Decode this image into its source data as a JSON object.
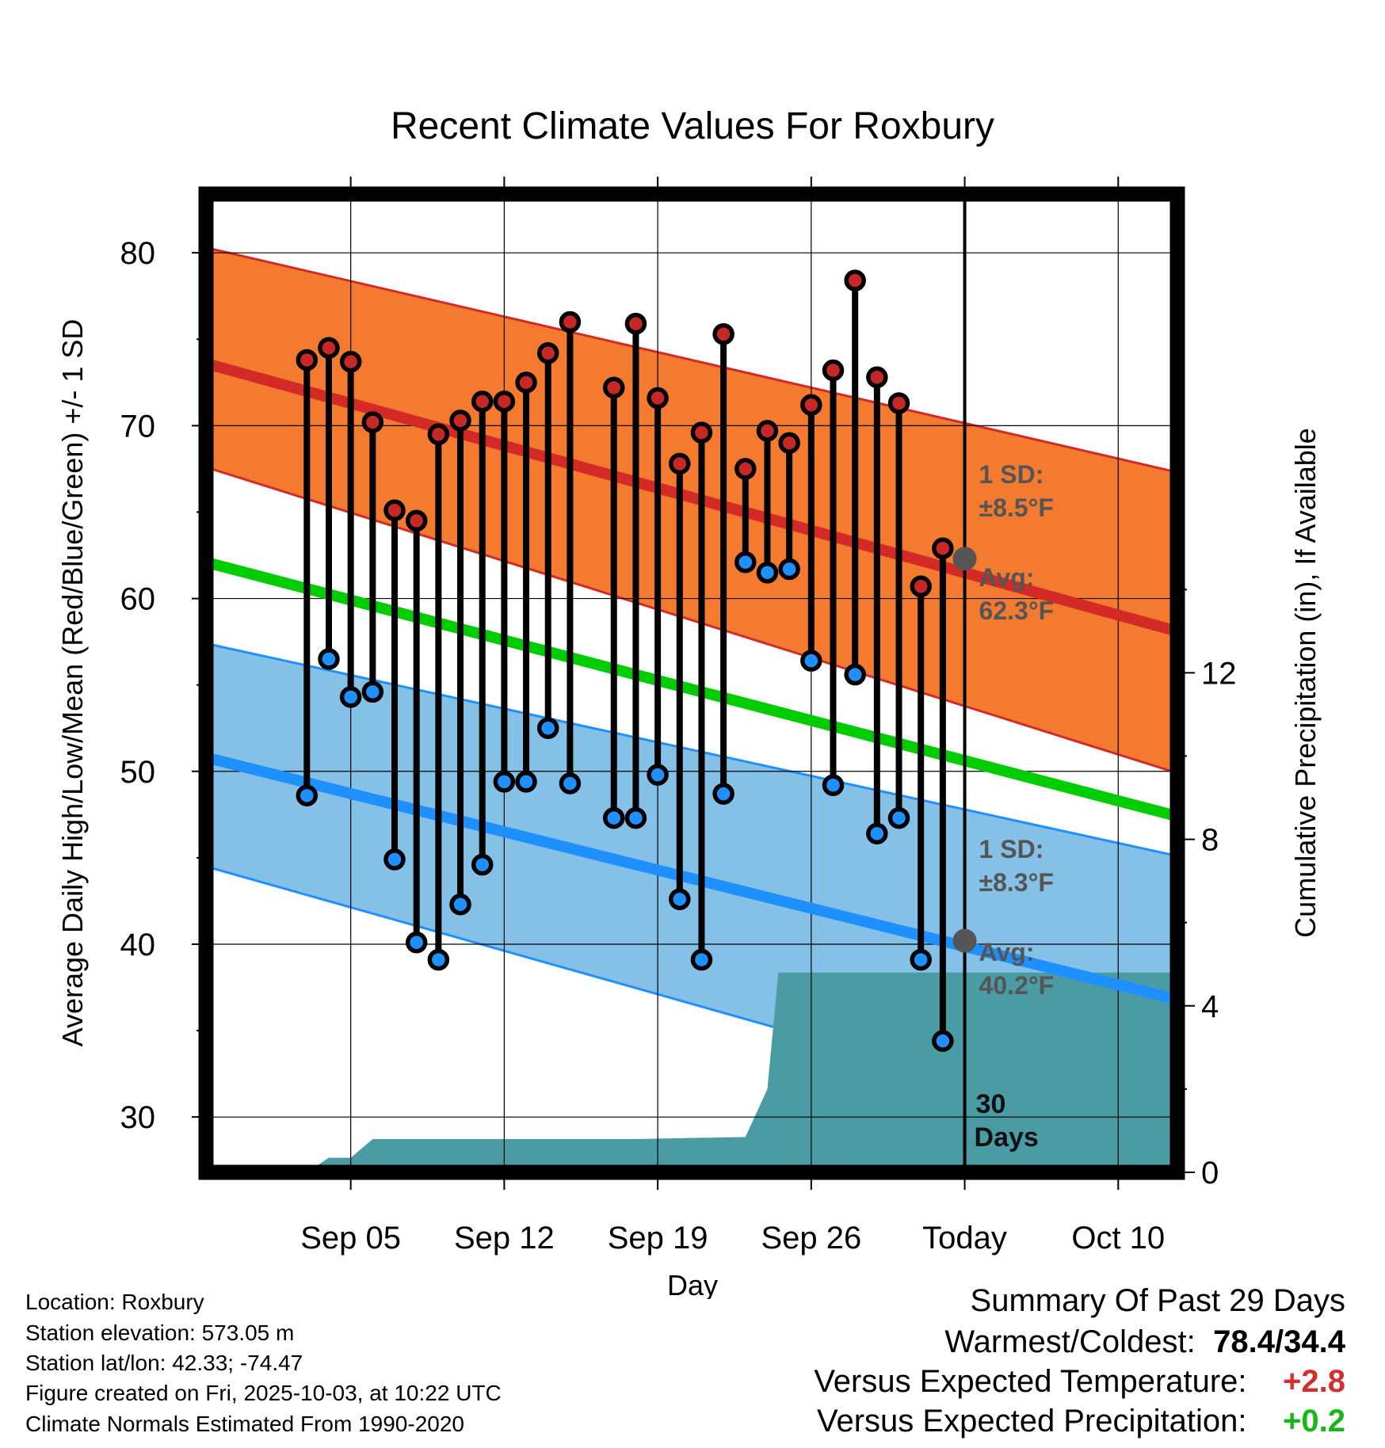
{
  "chart_data": {
    "type": "line",
    "title": "Recent Climate Values For Roxbury",
    "xlabel": "Day",
    "ylabel": "Average Daily High/Low/Mean (Red/Blue/Green) +/- 1 SD",
    "y2label": "Cumulative Precipitation (in), If Available",
    "x_ticks": [
      "Sep 05",
      "Sep 12",
      "Sep 19",
      "Sep 26",
      "Today",
      "Oct 10"
    ],
    "y_ticks": [
      "30",
      "40",
      "50",
      "60",
      "70",
      "80"
    ],
    "y2_ticks": [
      "0",
      "4",
      "8",
      "12"
    ],
    "ylim": [
      26.8,
      83.4
    ],
    "y2lim": [
      0,
      23.5
    ],
    "x_range_days": [
      -34.6,
      9.7
    ],
    "x_tick_days": [
      -28,
      -21,
      -14,
      -7,
      0,
      7
    ],
    "normals": {
      "days": [
        -34.6,
        9.7
      ],
      "high_mean": [
        73.6,
        58.1
      ],
      "high_upper": [
        80.3,
        67.3
      ],
      "high_lower": [
        67.6,
        49.9
      ],
      "mean": [
        62.1,
        47.4
      ],
      "low_mean": [
        50.8,
        36.8
      ],
      "low_upper": [
        57.4,
        45.1
      ],
      "low_lower": [
        44.5,
        28.6
      ]
    },
    "series": [
      {
        "name": "Daily High",
        "color": "#c62828",
        "days": [
          -30,
          -29,
          -28,
          -27,
          -26,
          -25,
          -24,
          -23,
          -22,
          -21,
          -20,
          -19,
          -18,
          -16,
          -15,
          -14,
          -13,
          -12,
          -11,
          -10,
          -9,
          -8,
          -7,
          -6,
          -5,
          -4,
          -3,
          -2,
          -1
        ],
        "values": [
          73.8,
          74.5,
          73.7,
          70.2,
          65.1,
          64.5,
          69.5,
          70.3,
          71.4,
          71.4,
          72.5,
          74.2,
          76.0,
          72.2,
          75.9,
          71.6,
          67.8,
          69.6,
          75.3,
          67.5,
          69.7,
          69.0,
          71.2,
          73.2,
          78.4,
          72.8,
          71.3,
          60.7,
          62.9
        ]
      },
      {
        "name": "Daily Low",
        "color": "#1e90ff",
        "days": [
          -30,
          -29,
          -28,
          -27,
          -26,
          -25,
          -24,
          -23,
          -22,
          -21,
          -20,
          -19,
          -18,
          -16,
          -15,
          -14,
          -13,
          -12,
          -11,
          -10,
          -9,
          -8,
          -7,
          -6,
          -5,
          -4,
          -3,
          -2,
          -1
        ],
        "values": [
          48.6,
          56.5,
          54.3,
          54.6,
          44.9,
          40.1,
          39.1,
          42.3,
          44.6,
          49.4,
          49.4,
          52.5,
          49.3,
          47.3,
          47.3,
          49.8,
          42.6,
          39.1,
          48.7,
          62.1,
          61.5,
          61.7,
          56.4,
          49.2,
          55.6,
          46.4,
          47.3,
          39.1,
          34.4
        ]
      }
    ],
    "precipitation": {
      "name": "Cumulative Precipitation",
      "color": "#4a9ba3",
      "days": [
        -34.6,
        -30,
        -29,
        -28,
        -27,
        -26,
        -20,
        -15,
        -10,
        -9,
        -8.5,
        -8,
        -7,
        -4,
        0,
        9.7
      ],
      "values": [
        0,
        0,
        0.35,
        0.35,
        0.8,
        0.8,
        0.8,
        0.8,
        0.85,
        2.0,
        4.8,
        4.8,
        4.8,
        4.8,
        4.8,
        4.8
      ]
    },
    "today_marker": {
      "high_avg": 62.3,
      "low_avg": 40.2
    },
    "annotations": {
      "high_sd_label": "1 SD:",
      "high_sd_value": "±8.5°F",
      "high_avg_label": "Avg:",
      "high_avg_value": "62.3°F",
      "low_sd_label": "1 SD:",
      "low_sd_value": "±8.3°F",
      "low_avg_label": "Avg:",
      "low_avg_value": "40.2°F",
      "days_number": "30",
      "days_word": "Days"
    }
  },
  "footer": {
    "location": "Location: Roxbury",
    "elevation": "Station elevation: 573.05 m",
    "latlon": "Station lat/lon: 42.33; -74.47",
    "created": "Figure created on Fri, 2025-10-03, at 10:22 UTC",
    "normals": "Climate Normals Estimated From 1990-2020"
  },
  "summary": {
    "title": "Summary Of Past 29 Days",
    "warm_cold_label": "Warmest/Coldest:",
    "warm_cold_value": "78.4/34.4",
    "temp_label": "Versus Expected Temperature:",
    "temp_value": "+2.8",
    "precip_label": "Versus Expected Precipitation:",
    "precip_value": "+0.2"
  },
  "colors": {
    "high_band": "#f47a30",
    "high_line": "#d42a26",
    "mean_line": "#00cc00",
    "low_band": "#85c1e7",
    "low_line": "#1e90ff",
    "precip": "#4a9ba3",
    "temp_delta": "#d32f2f",
    "precip_delta": "#16b716"
  }
}
